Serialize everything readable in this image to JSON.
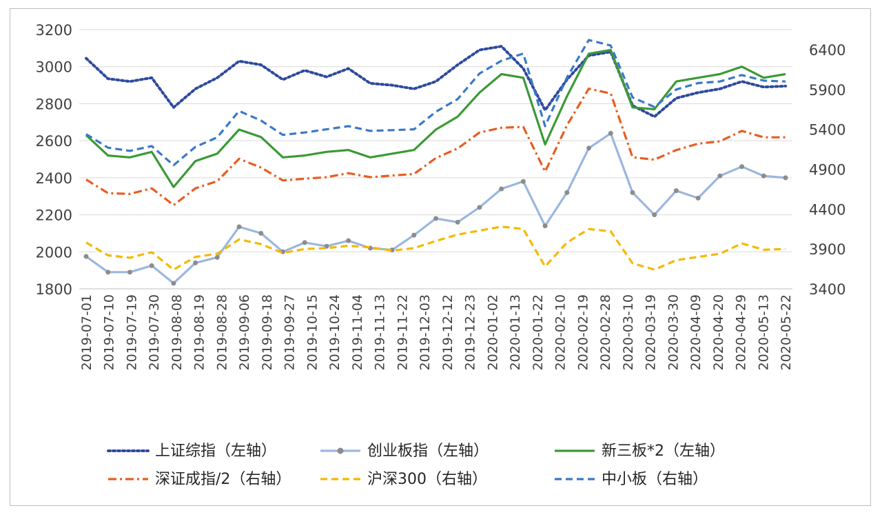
{
  "chart_data": {
    "type": "line",
    "title": "",
    "y_left": {
      "ticks": [
        1800,
        2000,
        2200,
        2400,
        2600,
        2800,
        3000,
        3200
      ],
      "range": [
        1800,
        3200
      ]
    },
    "y_right": {
      "ticks": [
        3400,
        3900,
        4400,
        4900,
        5400,
        5900,
        6400
      ],
      "range": [
        3400,
        6650
      ]
    },
    "x_tick_labels": [
      "2019-07-01",
      "2019-07-10",
      "2019-07-19",
      "2019-07-30",
      "2019-08-08",
      "2019-08-19",
      "2019-08-28",
      "2019-09-06",
      "2019-09-18",
      "2019-09-27",
      "2019-10-15",
      "2019-10-24",
      "2019-11-04",
      "2019-11-13",
      "2019-11-22",
      "2019-12-03",
      "2019-12-12",
      "2019-12-23",
      "2020-01-02",
      "2020-01-13",
      "2020-01-22",
      "2020-02-10",
      "2020-02-19",
      "2020-02-28",
      "2020-03-10",
      "2020-03-19",
      "2020-03-30",
      "2020-04-09",
      "2020-04-20",
      "2020-04-29",
      "2020-05-13",
      "2020-05-22"
    ],
    "series": [
      {
        "name": "上证综指（左轴）",
        "axis": "left",
        "color": "#2e4a9e",
        "style": "dotted",
        "values": [
          3045,
          2935,
          2920,
          2940,
          2780,
          2880,
          2940,
          3030,
          3010,
          2930,
          2980,
          2945,
          2990,
          2910,
          2900,
          2880,
          2920,
          3010,
          3090,
          3110,
          2990,
          2765,
          2930,
          3060,
          3080,
          2790,
          2730,
          2830,
          2860,
          2880,
          2920,
          2890,
          2895
        ]
      },
      {
        "name": "创业板指（左轴）",
        "axis": "left",
        "color": "#9ab6e0",
        "marker_color": "#8c8c8c",
        "style": "solid-with-markers",
        "values": [
          1975,
          1890,
          1890,
          1925,
          1830,
          1940,
          1970,
          2135,
          2100,
          2000,
          2050,
          2030,
          2060,
          2020,
          2010,
          2090,
          2180,
          2160,
          2240,
          2340,
          2380,
          2140,
          2320,
          2560,
          2640,
          2320,
          2200,
          2330,
          2290,
          2410,
          2460,
          2410,
          2400
        ]
      },
      {
        "name": "新三板*2（左轴）",
        "axis": "left",
        "color": "#3b9a35",
        "style": "solid",
        "values": [
          2630,
          2520,
          2510,
          2540,
          2350,
          2490,
          2530,
          2660,
          2620,
          2510,
          2520,
          2540,
          2550,
          2510,
          2530,
          2550,
          2660,
          2730,
          2860,
          2960,
          2940,
          2580,
          2840,
          3070,
          3090,
          2780,
          2770,
          2920,
          2940,
          2960,
          3000,
          2940,
          2960
        ]
      },
      {
        "name": "深证成指/2（右轴）",
        "axis": "right",
        "color": "#e85c20",
        "style": "dash-dot",
        "values": [
          4770,
          4600,
          4590,
          4660,
          4450,
          4660,
          4750,
          5030,
          4920,
          4760,
          4780,
          4800,
          4850,
          4800,
          4820,
          4840,
          5040,
          5160,
          5360,
          5420,
          5430,
          4870,
          5450,
          5910,
          5850,
          5050,
          5020,
          5140,
          5220,
          5250,
          5380,
          5300,
          5300
        ]
      },
      {
        "name": "沪深300（右轴）",
        "axis": "right",
        "color": "#f5b800",
        "style": "dashed",
        "values": [
          3980,
          3820,
          3790,
          3860,
          3640,
          3800,
          3840,
          4020,
          3960,
          3850,
          3900,
          3910,
          3940,
          3920,
          3880,
          3910,
          4000,
          4080,
          4130,
          4180,
          4150,
          3680,
          3980,
          4150,
          4120,
          3720,
          3640,
          3760,
          3800,
          3840,
          3970,
          3890,
          3900
        ]
      },
      {
        "name": "中小板（右轴）",
        "axis": "right",
        "color": "#3a78c8",
        "style": "dashed",
        "values": [
          5340,
          5170,
          5130,
          5190,
          4950,
          5180,
          5300,
          5630,
          5510,
          5330,
          5360,
          5400,
          5440,
          5380,
          5390,
          5400,
          5620,
          5780,
          6100,
          6260,
          6350,
          5440,
          6050,
          6520,
          6450,
          5800,
          5680,
          5900,
          5980,
          6000,
          6080,
          6010,
          6000
        ]
      }
    ]
  }
}
